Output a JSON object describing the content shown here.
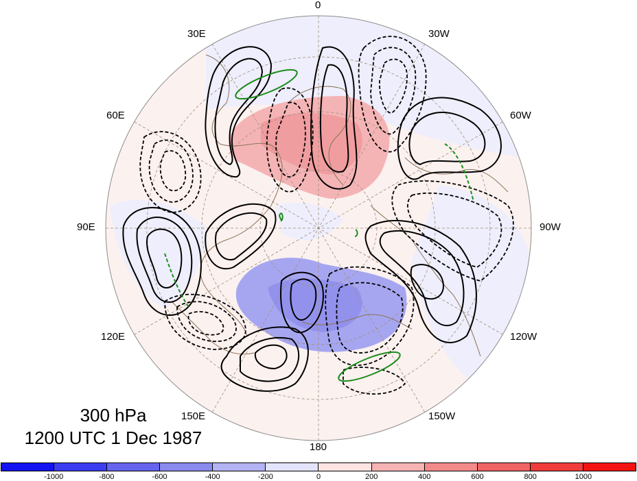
{
  "map": {
    "projection": "north-polar-stereographic",
    "field_shading": "height anomaly (color fill)",
    "contour_styles": [
      "solid black (positive)",
      "dashed black (negative)",
      "green (zero/low)"
    ],
    "colors": {
      "background": "#fdf0ec",
      "coast": "#8b7355",
      "graticule": "#a08c78",
      "positive_shade": "#f6a6a8",
      "negative_shade": "#9e9ef0",
      "zero_contour": "#1a8c1a"
    }
  },
  "longitude_labels": {
    "lon_0": "0",
    "lon_30w": "30W",
    "lon_60w": "60W",
    "lon_90w": "90W",
    "lon_120w": "120W",
    "lon_150w": "150W",
    "lon_180": "180",
    "lon_150e": "150E",
    "lon_120e": "120E",
    "lon_90e": "90E",
    "lon_60e": "60E",
    "lon_30e": "30E"
  },
  "title": {
    "level": "300 hPa",
    "time": "1200 UTC 1 Dec 1987"
  },
  "colorbar": {
    "colors": [
      "#1313f2",
      "#3c3cf0",
      "#6464ee",
      "#8a8aef",
      "#b3b3f3",
      "#e3e3fb",
      "#fde4e2",
      "#f6b3b3",
      "#f38a8a",
      "#f06464",
      "#f03c3c",
      "#f41313"
    ],
    "labels": [
      "-1000",
      "-800",
      "-600",
      "-400",
      "-200",
      "0",
      "200",
      "400",
      "600",
      "800",
      "1000"
    ]
  }
}
